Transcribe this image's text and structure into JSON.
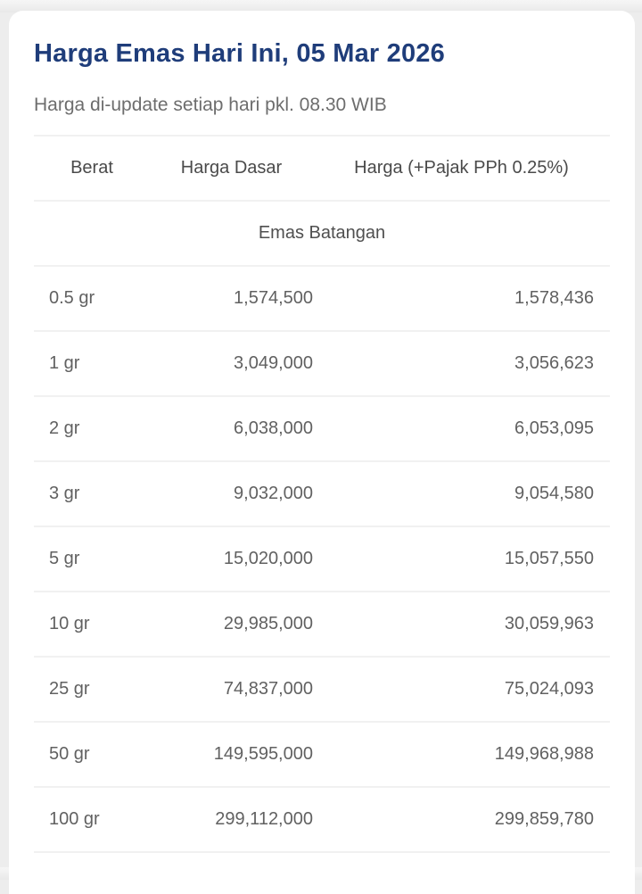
{
  "header": {
    "title": "Harga Emas Hari Ini, 05 Mar 2026",
    "subtitle": "Harga di-update setiap hari pkl. 08.30 WIB"
  },
  "colors": {
    "title_accent": "#1f3d7a",
    "divider": "#f1f1f1",
    "page_background": "#ededed"
  },
  "table": {
    "columns": [
      "Berat",
      "Harga Dasar",
      "Harga (+Pajak PPh 0.25%)"
    ],
    "section_label": "Emas Batangan",
    "rows": [
      {
        "weight": "0.5 gr",
        "base_price": "1,574,500",
        "taxed_price": "1,578,436"
      },
      {
        "weight": "1 gr",
        "base_price": "3,049,000",
        "taxed_price": "3,056,623"
      },
      {
        "weight": "2 gr",
        "base_price": "6,038,000",
        "taxed_price": "6,053,095"
      },
      {
        "weight": "3 gr",
        "base_price": "9,032,000",
        "taxed_price": "9,054,580"
      },
      {
        "weight": "5 gr",
        "base_price": "15,020,000",
        "taxed_price": "15,057,550"
      },
      {
        "weight": "10 gr",
        "base_price": "29,985,000",
        "taxed_price": "30,059,963"
      },
      {
        "weight": "25 gr",
        "base_price": "74,837,000",
        "taxed_price": "75,024,093"
      },
      {
        "weight": "50 gr",
        "base_price": "149,595,000",
        "taxed_price": "149,968,988"
      },
      {
        "weight": "100 gr",
        "base_price": "299,112,000",
        "taxed_price": "299,859,780"
      }
    ]
  }
}
